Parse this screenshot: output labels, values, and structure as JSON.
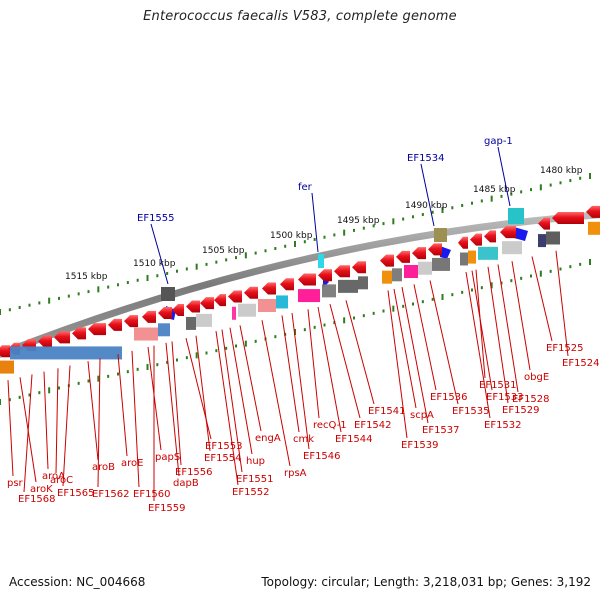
{
  "title": "Enterococcus faecalis V583, complete genome",
  "footer": {
    "accession": "Accession: NC_004668",
    "summary": "Topology: circular; Length: 3,218,031 bp; Genes: 3,192"
  },
  "colors": {
    "cds": "#e8101a",
    "label_red": "#cc0000",
    "label_blue": "#00009c",
    "backbone": "#8a8a8a",
    "ticks": "#2e7d1e",
    "feature_blue": "#1a1aee"
  },
  "scale_labels": [
    "1515 kbp",
    "1510 kbp",
    "1505 kbp",
    "1500 kbp",
    "1495 kbp",
    "1490 kbp",
    "1485 kbp",
    "1480 kbp"
  ],
  "blue_labels": [
    "EF1555",
    "fer",
    "EF1534",
    "gap-1"
  ],
  "red_labels": [
    "psr",
    "aroK",
    "EF1568",
    "aroA",
    "aroC",
    "EF1565",
    "aroB",
    "EF1562",
    "aroE",
    "EF1560",
    "papS",
    "EF1559",
    "dapB",
    "EF1556",
    "EF1553",
    "EF1554",
    "EF1552",
    "EF1551",
    "hup",
    "engA",
    "rpsA",
    "cmk",
    "EF1546",
    "recQ-1",
    "EF1544",
    "EF1542",
    "EF1541",
    "EF1539",
    "scpA",
    "EF1537",
    "EF1536",
    "EF1535",
    "EF1532",
    "EF1533",
    "EF1531",
    "EF1529",
    "EF1528",
    "obgE",
    "EF1525",
    "EF1524"
  ]
}
